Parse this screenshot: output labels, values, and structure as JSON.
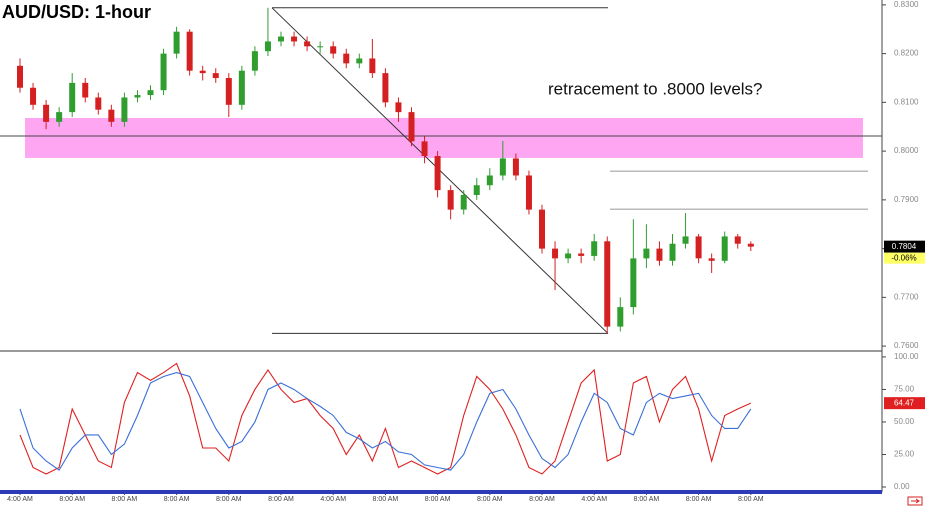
{
  "chart_data": [
    {
      "type": "candlestick",
      "title": "AUD/USD: 1-hour",
      "annotation": "retracement to .8000 levels?",
      "open": [
        0.8175,
        0.813,
        0.8095,
        0.806,
        0.808,
        0.814,
        0.811,
        0.8085,
        0.806,
        0.811,
        0.8115,
        0.8125,
        0.82,
        0.8245,
        0.8165,
        0.816,
        0.815,
        0.8095,
        0.8165,
        0.8205,
        0.8225,
        0.8235,
        0.8225,
        0.8215,
        0.8215,
        0.82,
        0.818,
        0.819,
        0.816,
        0.81,
        0.808,
        0.802,
        0.799,
        0.792,
        0.788,
        0.791,
        0.793,
        0.795,
        0.7985,
        0.795,
        0.788,
        0.78,
        0.778,
        0.779,
        0.7785,
        0.7815,
        0.764,
        0.768,
        0.778,
        0.78,
        0.7775,
        0.781,
        0.7825,
        0.778,
        0.7775,
        0.7825,
        0.781
      ],
      "high": [
        0.819,
        0.814,
        0.8105,
        0.809,
        0.816,
        0.815,
        0.812,
        0.8095,
        0.812,
        0.8125,
        0.8135,
        0.821,
        0.8255,
        0.825,
        0.8175,
        0.817,
        0.816,
        0.8175,
        0.8215,
        0.8294,
        0.8245,
        0.8245,
        0.8235,
        0.8225,
        0.8225,
        0.821,
        0.82,
        0.823,
        0.817,
        0.811,
        0.809,
        0.803,
        0.8,
        0.793,
        0.792,
        0.7945,
        0.7965,
        0.8021,
        0.7995,
        0.796,
        0.789,
        0.7815,
        0.78,
        0.78,
        0.783,
        0.7825,
        0.77,
        0.786,
        0.785,
        0.7815,
        0.783,
        0.7873,
        0.783,
        0.779,
        0.7835,
        0.783,
        0.7815
      ],
      "low": [
        0.812,
        0.8085,
        0.8045,
        0.805,
        0.807,
        0.81,
        0.8075,
        0.805,
        0.805,
        0.81,
        0.8105,
        0.8115,
        0.819,
        0.8155,
        0.8145,
        0.814,
        0.807,
        0.8085,
        0.8155,
        0.8195,
        0.8215,
        0.8215,
        0.8205,
        0.82,
        0.819,
        0.817,
        0.817,
        0.815,
        0.809,
        0.806,
        0.801,
        0.7975,
        0.7905,
        0.786,
        0.787,
        0.79,
        0.792,
        0.794,
        0.794,
        0.787,
        0.779,
        0.7715,
        0.777,
        0.777,
        0.7775,
        0.7626,
        0.763,
        0.7665,
        0.776,
        0.7765,
        0.7765,
        0.78,
        0.777,
        0.775,
        0.777,
        0.78,
        0.7795
      ],
      "close": [
        0.813,
        0.8095,
        0.806,
        0.808,
        0.814,
        0.811,
        0.8085,
        0.806,
        0.811,
        0.8115,
        0.8125,
        0.82,
        0.8245,
        0.8165,
        0.816,
        0.815,
        0.8095,
        0.8165,
        0.8205,
        0.8225,
        0.8235,
        0.8225,
        0.8215,
        0.8215,
        0.82,
        0.818,
        0.819,
        0.816,
        0.81,
        0.808,
        0.802,
        0.799,
        0.792,
        0.788,
        0.791,
        0.793,
        0.795,
        0.7985,
        0.795,
        0.788,
        0.78,
        0.778,
        0.779,
        0.7785,
        0.7815,
        0.764,
        0.768,
        0.778,
        0.78,
        0.7775,
        0.781,
        0.7825,
        0.778,
        0.7775,
        0.7825,
        0.781,
        0.7804
      ],
      "up_color": "#2f9e2f",
      "down_color": "#d42020",
      "ylim": [
        0.7592,
        0.831
      ],
      "yticks": [
        {
          "value": 0.76,
          "label": "0.7600"
        },
        {
          "value": 0.77,
          "label": "0.7700"
        },
        {
          "value": 0.78,
          "label": "0.7800"
        },
        {
          "value": 0.79,
          "label": "0.7900"
        },
        {
          "value": 0.8,
          "label": "0.8000"
        },
        {
          "value": 0.81,
          "label": "0.8100"
        },
        {
          "value": 0.82,
          "label": "0.8200"
        },
        {
          "value": 0.83,
          "label": "0.8300"
        }
      ],
      "last_price": 0.7804,
      "change": {
        "value": -0.06,
        "label": "-0.06%"
      },
      "zone": {
        "low": 0.7986,
        "high": 0.8068
      },
      "level_line": 0.8031,
      "fib_high": 0.8294,
      "fib_low": 0.7626,
      "fib_levels": [
        0.7959,
        0.7881
      ]
    },
    {
      "type": "line",
      "categories": [
        "4:00 AM",
        null,
        null,
        null,
        "8:00 AM",
        null,
        null,
        null,
        "8:00 AM",
        null,
        null,
        null,
        "8:00 AM",
        null,
        null,
        null,
        "8:00 AM",
        null,
        null,
        null,
        "8:00 AM",
        null,
        null,
        null,
        "4:00 AM",
        null,
        null,
        null,
        "8:00 AM",
        null,
        null,
        null,
        "8:00 AM",
        null,
        null,
        null,
        "8:00 AM",
        null,
        null,
        null,
        "8:00 AM",
        null,
        null,
        null,
        "4:00 AM",
        null,
        null,
        null,
        "8:00 AM",
        null,
        null,
        null,
        "8:00 AM",
        null,
        null,
        null,
        "8:00 AM"
      ],
      "series": [
        {
          "color": "#e02020",
          "values": [
            40,
            15,
            10,
            15,
            60,
            40,
            20,
            15,
            65,
            88,
            82,
            88,
            95,
            70,
            30,
            30,
            20,
            55,
            75,
            90,
            75,
            65,
            68,
            55,
            45,
            25,
            40,
            20,
            45,
            15,
            20,
            15,
            10,
            15,
            55,
            85,
            75,
            60,
            40,
            15,
            10,
            20,
            50,
            80,
            90,
            20,
            25,
            80,
            85,
            50,
            75,
            85,
            60,
            20,
            55,
            60,
            64.47
          ]
        },
        {
          "color": "#3a6fd8",
          "values": [
            60,
            30,
            20,
            13,
            30,
            40,
            40,
            25,
            33,
            55,
            80,
            85,
            88,
            85,
            65,
            45,
            30,
            35,
            50,
            75,
            80,
            75,
            68,
            62,
            55,
            42,
            37,
            30,
            35,
            27,
            25,
            17,
            15,
            13,
            25,
            50,
            72,
            75,
            60,
            40,
            22,
            15,
            25,
            50,
            72,
            65,
            45,
            40,
            65,
            72,
            68,
            70,
            72,
            55,
            45,
            45,
            60
          ]
        }
      ],
      "ylim": [
        -2.3,
        103.8
      ],
      "yticks": [
        {
          "value": 0,
          "label": "0.00"
        },
        {
          "value": 25,
          "label": "25.00"
        },
        {
          "value": 50,
          "label": "50.00"
        },
        {
          "value": 75,
          "label": "75.00"
        },
        {
          "value": 100,
          "label": "100.00"
        }
      ],
      "last_value": 64.47
    }
  ]
}
